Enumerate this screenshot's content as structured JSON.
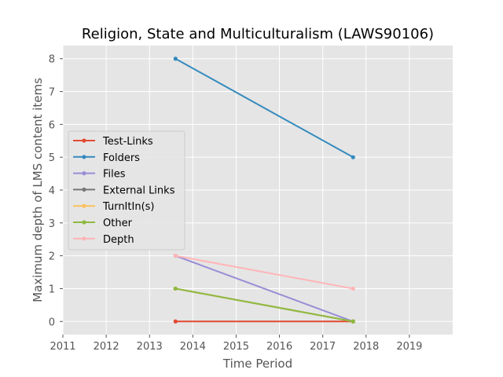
{
  "chart_data": {
    "type": "line",
    "title": "Religion, State and Multiculturalism (LAWS90106)",
    "xlabel": "Time Period",
    "ylabel": "Maximum depth of LMS content items",
    "xlim": [
      2011,
      2020
    ],
    "ylim": [
      -0.4,
      8.4
    ],
    "xticks": [
      "2011",
      "2012",
      "2013",
      "2014",
      "2015",
      "2016",
      "2017",
      "2018",
      "2019"
    ],
    "yticks": [
      "0",
      "1",
      "2",
      "3",
      "4",
      "5",
      "6",
      "7",
      "8"
    ],
    "grid": true,
    "legend_position": "center-left",
    "x": [
      2013.6,
      2017.7
    ],
    "series": [
      {
        "name": "Test-Links",
        "color": "#e24a33",
        "values": [
          0,
          0
        ]
      },
      {
        "name": "Folders",
        "color": "#348abd",
        "values": [
          8,
          5
        ]
      },
      {
        "name": "Files",
        "color": "#988ed5",
        "values": [
          2,
          0
        ]
      },
      {
        "name": "External Links",
        "color": "#777777",
        "values": [
          1,
          0
        ]
      },
      {
        "name": "TurnItIn(s)",
        "color": "#fbc15e",
        "values": [
          1,
          0
        ]
      },
      {
        "name": "Other",
        "color": "#8eba42",
        "values": [
          1,
          0
        ]
      },
      {
        "name": "Depth",
        "color": "#ffb5b8",
        "values": [
          2,
          1
        ]
      }
    ]
  }
}
